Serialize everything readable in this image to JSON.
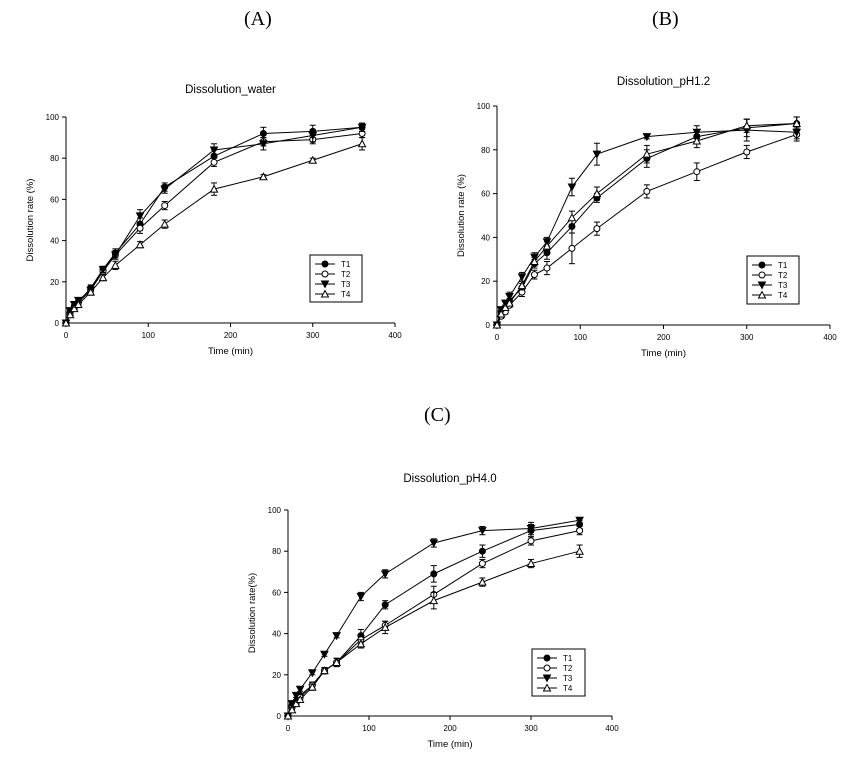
{
  "panel_labels": [
    "(A)",
    "(B)",
    "(C)"
  ],
  "chart_data": [
    {
      "type": "line",
      "title": "Dissolution_water",
      "xlabel": "Time (min)",
      "ylabel": "Dissolution rate (%)",
      "xlim": [
        0,
        400
      ],
      "ylim": [
        0,
        100
      ],
      "xticks": [
        0,
        100,
        200,
        300,
        400
      ],
      "yticks": [
        0,
        20,
        40,
        60,
        80,
        100
      ],
      "legend_position": "bottom-right",
      "x": [
        0,
        5,
        10,
        15,
        30,
        45,
        60,
        90,
        120,
        180,
        240,
        300,
        360
      ],
      "series": [
        {
          "name": "T1",
          "marker": "filled-circle",
          "values": [
            0,
            5,
            8,
            10,
            17,
            26,
            34,
            48,
            66,
            81,
            92,
            93,
            95
          ],
          "errors": [
            0,
            1,
            1,
            1,
            1.5,
            1.5,
            2,
            3,
            2,
            3,
            3,
            3,
            2
          ]
        },
        {
          "name": "T2",
          "marker": "open-circle",
          "values": [
            0,
            4,
            7,
            10,
            16,
            25,
            33,
            46,
            57,
            78,
            88,
            89,
            92
          ],
          "errors": [
            0,
            1,
            1,
            1,
            1.5,
            1.5,
            2,
            2.5,
            2,
            2,
            2,
            2,
            2
          ]
        },
        {
          "name": "T3",
          "marker": "filled-triangle-down",
          "values": [
            0,
            6,
            9,
            11,
            16,
            26,
            33,
            52,
            65,
            84,
            87,
            91,
            95
          ],
          "errors": [
            0,
            1,
            1,
            1,
            1.5,
            1.5,
            2,
            3,
            2,
            3,
            3,
            3,
            2
          ]
        },
        {
          "name": "T4",
          "marker": "open-triangle-up",
          "values": [
            0,
            4,
            7,
            9,
            15,
            22,
            28,
            38,
            48,
            65,
            71,
            79,
            87
          ],
          "errors": [
            0,
            1,
            1,
            1,
            1.5,
            1.5,
            2,
            1.5,
            2,
            3,
            1,
            1,
            3
          ]
        }
      ]
    },
    {
      "type": "line",
      "title": "Dissolution_pH1.2",
      "xlabel": "Time (min)",
      "ylabel": "Dissolution rate (%)",
      "xlim": [
        0,
        400
      ],
      "ylim": [
        0,
        100
      ],
      "xticks": [
        0,
        100,
        200,
        300,
        400
      ],
      "yticks": [
        0,
        20,
        40,
        60,
        80,
        100
      ],
      "legend_position": "bottom-right",
      "x": [
        0,
        5,
        10,
        15,
        30,
        45,
        60,
        90,
        120,
        180,
        240,
        300,
        360
      ],
      "series": [
        {
          "name": "T1",
          "marker": "filled-circle",
          "values": [
            0,
            6,
            8,
            11,
            17,
            28,
            33,
            45,
            58,
            76,
            86,
            90,
            92
          ],
          "errors": [
            0,
            1,
            1,
            1,
            2,
            2,
            3,
            3,
            2,
            4,
            3,
            4,
            3
          ]
        },
        {
          "name": "T2",
          "marker": "open-circle",
          "values": [
            0,
            4,
            6,
            9,
            15,
            23,
            26,
            35,
            44,
            61,
            70,
            79,
            87
          ],
          "errors": [
            0,
            1,
            1,
            1,
            2,
            2,
            3,
            7,
            3,
            3,
            4,
            3,
            3
          ]
        },
        {
          "name": "T3",
          "marker": "filled-triangle-down",
          "values": [
            0,
            7,
            10,
            13,
            22,
            31,
            38,
            63,
            78,
            86,
            88,
            89,
            88
          ],
          "errors": [
            0,
            1,
            1,
            2,
            2,
            2,
            2,
            4,
            5,
            1,
            3,
            5,
            3
          ]
        },
        {
          "name": "T4",
          "marker": "open-triangle-up",
          "values": [
            0,
            5,
            8,
            10,
            18,
            29,
            36,
            49,
            60,
            78,
            84,
            91,
            92
          ],
          "errors": [
            0,
            1,
            1,
            1,
            2,
            2,
            2,
            3,
            3,
            4,
            3,
            3,
            3
          ]
        }
      ]
    },
    {
      "type": "line",
      "title": "Dissolution_pH4.0",
      "xlabel": "Time (min)",
      "ylabel": "Dissolution rate(%)",
      "xlim": [
        0,
        400
      ],
      "ylim": [
        0,
        100
      ],
      "xticks": [
        0,
        100,
        200,
        300,
        400
      ],
      "yticks": [
        0,
        20,
        40,
        60,
        80,
        100
      ],
      "legend_position": "bottom-right",
      "x": [
        0,
        5,
        10,
        15,
        30,
        45,
        60,
        90,
        120,
        180,
        240,
        300,
        360
      ],
      "series": [
        {
          "name": "T1",
          "marker": "filled-circle",
          "values": [
            0,
            5,
            7,
            10,
            15,
            22,
            26,
            39,
            54,
            69,
            80,
            90,
            93
          ],
          "errors": [
            0,
            1,
            1,
            1,
            1.5,
            1.5,
            2,
            3,
            2,
            4,
            3,
            3,
            2
          ]
        },
        {
          "name": "T2",
          "marker": "open-circle",
          "values": [
            0,
            4,
            6,
            9,
            15,
            22,
            26,
            37,
            44,
            59,
            74,
            85,
            90
          ],
          "errors": [
            0,
            1,
            1,
            1,
            1.5,
            1.5,
            2,
            2,
            2,
            4,
            2,
            2,
            2
          ]
        },
        {
          "name": "T3",
          "marker": "filled-triangle-down",
          "values": [
            0,
            6,
            10,
            13,
            21,
            30,
            39,
            58,
            69,
            84,
            90,
            91,
            95
          ],
          "errors": [
            0,
            1,
            1,
            1,
            1,
            1,
            1,
            2,
            2,
            2,
            2,
            3,
            1
          ]
        },
        {
          "name": "T4",
          "marker": "open-triangle-up",
          "values": [
            0,
            3,
            6,
            8,
            14,
            22,
            26,
            35,
            43,
            56,
            65,
            74,
            80
          ],
          "errors": [
            0,
            1,
            1,
            1,
            1.5,
            1.5,
            2,
            2,
            3,
            4,
            2,
            2,
            3
          ]
        }
      ]
    }
  ]
}
